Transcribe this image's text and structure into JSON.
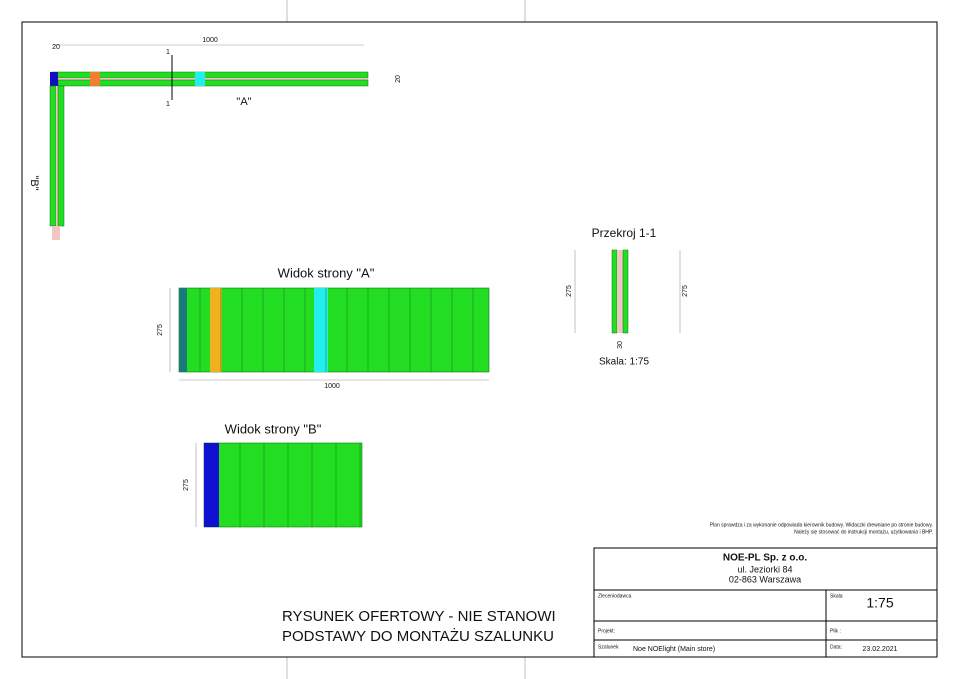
{
  "plan": {
    "length_dim": "1000",
    "corner_dim": "20",
    "width_dim": "20",
    "section_mark": "1",
    "view_a_mark": "\"A\"",
    "view_b_mark": "\"B\""
  },
  "view_a": {
    "title": "Widok strony \"A\"",
    "height_dim": "275",
    "length_dim": "1000"
  },
  "view_b": {
    "title": "Widok strony \"B\"",
    "height_dim": "275"
  },
  "section": {
    "title": "Przekroj 1-1",
    "height_dim": "275",
    "thickness_dim": "30",
    "scale": "Skala: 1:75"
  },
  "note": {
    "line1": "Plan sprawdza i za wykonanie odpowiada kierownik budowy. Widaczki drewniane po stronie budowy.",
    "line2": "Należy się stosować do instrukcji montażu, użytkowania i BHP."
  },
  "title_block": {
    "company": "NOE-PL Sp. z o.o.",
    "street": "ul. Jeziorki 84",
    "city": "02-863 Warszawa",
    "client_label": "Zleceniodawca",
    "scale_label": "Skala",
    "scale": "1:75",
    "project_label": "Projekt:",
    "file_label": "Plik :",
    "formwork_label": "Szalunek",
    "formwork": "Noe NOElight (Main store)",
    "date_label": "Data:",
    "date": "23.02.2021"
  },
  "footer": {
    "line1": "RYSUNEK OFERTOWY - NIE STANOWI",
    "line2": "PODSTAWY DO MONTAŻU SZALUNKU"
  }
}
